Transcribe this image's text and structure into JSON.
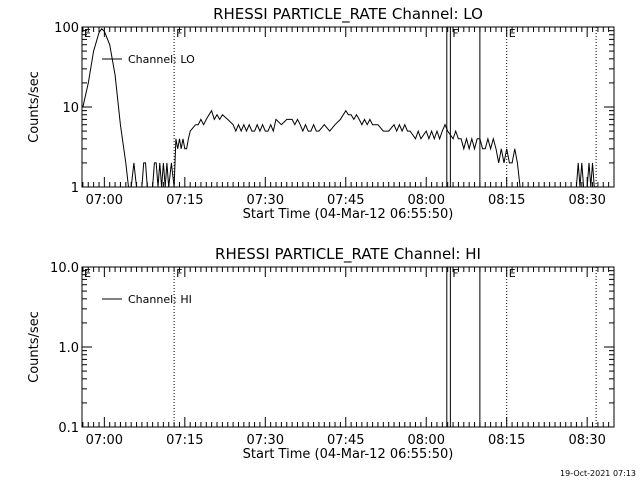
{
  "page": {
    "footer_timestamp": "19-Oct-2021 07:13"
  },
  "chart_data": [
    {
      "type": "line",
      "title": "RHESSI PARTICLE_RATE Channel: LO",
      "xlabel": "Start Time (04-Mar-12 06:55:50)",
      "ylabel": "Counts/sec",
      "yscale": "log",
      "ylim": [
        1,
        100
      ],
      "yticks": [
        "1",
        "10",
        "100"
      ],
      "xlim": [
        "06:55:50",
        "08:35:00"
      ],
      "xticks": [
        "07:00",
        "07:15",
        "07:30",
        "07:45",
        "08:00",
        "08:15",
        "08:30"
      ],
      "legend": {
        "position": "top-left",
        "label": "Channel: LO"
      },
      "markers": [
        {
          "label": "E",
          "time": "06:55:50",
          "style": "dotted"
        },
        {
          "label": "F",
          "time": "07:13:00",
          "style": "dotted"
        },
        {
          "label": "",
          "time": "08:03:50",
          "style": "solid"
        },
        {
          "label": "F",
          "time": "08:04:30",
          "style": "solid"
        },
        {
          "label": "",
          "time": "08:10:00",
          "style": "solid"
        },
        {
          "label": "E",
          "time": "08:15:00",
          "style": "dotted"
        },
        {
          "label": "",
          "time": "08:31:40",
          "style": "dotted"
        }
      ],
      "series": [
        {
          "points": [
            [
              "06:56:00",
              10
            ],
            [
              "06:57:00",
              20
            ],
            [
              "06:58:00",
              50
            ],
            [
              "06:59:00",
              85
            ],
            [
              "06:59:30",
              95
            ],
            [
              "07:00:00",
              88
            ],
            [
              "07:01:00",
              60
            ],
            [
              "07:02:00",
              25
            ],
            [
              "07:03:00",
              6
            ],
            [
              "07:04:00",
              2
            ],
            [
              "07:04:30",
              1
            ],
            [
              "07:05:00",
              1
            ],
            [
              "07:05:30",
              2
            ],
            [
              "07:06:00",
              1
            ],
            [
              "07:07:00",
              1
            ],
            [
              "07:07:20",
              2
            ],
            [
              "07:07:40",
              2
            ],
            [
              "07:08:00",
              1
            ],
            [
              "07:09:00",
              1
            ],
            [
              "07:09:20",
              2
            ],
            [
              "07:09:40",
              2
            ],
            [
              "07:10:00",
              1
            ],
            [
              "07:10:20",
              2
            ],
            [
              "07:10:40",
              1
            ],
            [
              "07:11:00",
              2
            ],
            [
              "07:11:20",
              1
            ],
            [
              "07:11:40",
              2
            ],
            [
              "07:12:00",
              1
            ],
            [
              "07:12:30",
              2
            ],
            [
              "07:13:00",
              1
            ],
            [
              "07:13:20",
              4
            ],
            [
              "07:13:40",
              3
            ],
            [
              "07:14:00",
              4
            ],
            [
              "07:14:20",
              3
            ],
            [
              "07:14:40",
              4
            ],
            [
              "07:15:00",
              3
            ],
            [
              "07:15:20",
              3
            ],
            [
              "07:15:40",
              4
            ],
            [
              "07:16:00",
              5
            ],
            [
              "07:17:00",
              6
            ],
            [
              "07:17:30",
              6
            ],
            [
              "07:18:00",
              7
            ],
            [
              "07:18:30",
              6
            ],
            [
              "07:19:00",
              7
            ],
            [
              "07:19:30",
              8
            ],
            [
              "07:20:00",
              9
            ],
            [
              "07:20:30",
              7
            ],
            [
              "07:21:00",
              8
            ],
            [
              "07:21:30",
              7
            ],
            [
              "07:22:00",
              8
            ],
            [
              "07:23:00",
              7
            ],
            [
              "07:24:00",
              6
            ],
            [
              "07:24:30",
              5
            ],
            [
              "07:25:00",
              6
            ],
            [
              "07:25:30",
              5
            ],
            [
              "07:26:00",
              6
            ],
            [
              "07:26:30",
              5
            ],
            [
              "07:27:00",
              6
            ],
            [
              "07:27:30",
              5
            ],
            [
              "07:28:00",
              5
            ],
            [
              "07:28:30",
              6
            ],
            [
              "07:29:00",
              5
            ],
            [
              "07:29:30",
              6
            ],
            [
              "07:30:00",
              5
            ],
            [
              "07:30:30",
              5
            ],
            [
              "07:31:00",
              6
            ],
            [
              "07:31:30",
              5
            ],
            [
              "07:32:00",
              7
            ],
            [
              "07:33:00",
              6
            ],
            [
              "07:34:00",
              7
            ],
            [
              "07:35:00",
              7
            ],
            [
              "07:35:30",
              6
            ],
            [
              "07:36:00",
              7
            ],
            [
              "07:36:30",
              6
            ],
            [
              "07:37:00",
              5
            ],
            [
              "07:37:30",
              6
            ],
            [
              "07:38:00",
              5
            ],
            [
              "07:38:30",
              5
            ],
            [
              "07:39:00",
              6
            ],
            [
              "07:39:30",
              5
            ],
            [
              "07:40:00",
              5
            ],
            [
              "07:41:00",
              6
            ],
            [
              "07:42:00",
              5
            ],
            [
              "07:43:00",
              6
            ],
            [
              "07:44:00",
              7
            ],
            [
              "07:45:00",
              9
            ],
            [
              "07:45:30",
              8
            ],
            [
              "07:46:00",
              8
            ],
            [
              "07:46:30",
              7
            ],
            [
              "07:47:00",
              8
            ],
            [
              "07:47:30",
              7
            ],
            [
              "07:48:00",
              6
            ],
            [
              "07:48:30",
              7
            ],
            [
              "07:49:00",
              6
            ],
            [
              "07:49:30",
              7
            ],
            [
              "07:50:00",
              6
            ],
            [
              "07:51:00",
              6
            ],
            [
              "07:52:00",
              5
            ],
            [
              "07:53:00",
              5
            ],
            [
              "07:54:00",
              6
            ],
            [
              "07:54:30",
              5
            ],
            [
              "07:55:00",
              6
            ],
            [
              "07:55:30",
              5
            ],
            [
              "07:56:00",
              6
            ],
            [
              "07:56:30",
              5
            ],
            [
              "07:57:00",
              5
            ],
            [
              "07:58:00",
              4
            ],
            [
              "07:58:30",
              5
            ],
            [
              "07:59:00",
              4
            ],
            [
              "08:00:00",
              5
            ],
            [
              "08:00:30",
              4
            ],
            [
              "08:01:00",
              5
            ],
            [
              "08:01:30",
              4
            ],
            [
              "08:02:00",
              5
            ],
            [
              "08:02:30",
              4
            ],
            [
              "08:03:00",
              5
            ],
            [
              "08:03:30",
              6
            ],
            [
              "08:04:00",
              5
            ],
            [
              "08:05:00",
              4
            ],
            [
              "08:05:30",
              5
            ],
            [
              "08:06:00",
              4
            ],
            [
              "08:06:30",
              4
            ],
            [
              "08:07:00",
              3
            ],
            [
              "08:07:30",
              4
            ],
            [
              "08:08:00",
              3
            ],
            [
              "08:08:30",
              4
            ],
            [
              "08:09:00",
              3
            ],
            [
              "08:09:30",
              4
            ],
            [
              "08:10:00",
              4
            ],
            [
              "08:10:30",
              3
            ],
            [
              "08:11:00",
              3
            ],
            [
              "08:11:30",
              4
            ],
            [
              "08:12:00",
              3
            ],
            [
              "08:12:30",
              4
            ],
            [
              "08:13:00",
              3
            ],
            [
              "08:13:30",
              2
            ],
            [
              "08:14:00",
              3
            ],
            [
              "08:14:30",
              2
            ],
            [
              "08:15:00",
              3
            ],
            [
              "08:15:30",
              2
            ],
            [
              "08:16:00",
              2
            ],
            [
              "08:16:30",
              3
            ],
            [
              "08:17:00",
              2
            ],
            [
              "08:17:30",
              1
            ],
            [
              "08:28:00",
              1
            ],
            [
              "08:28:20",
              2
            ],
            [
              "08:28:40",
              1
            ],
            [
              "08:29:00",
              2
            ],
            [
              "08:29:20",
              1
            ],
            [
              "08:30:00",
              1
            ],
            [
              "08:30:20",
              2
            ],
            [
              "08:30:40",
              1
            ],
            [
              "08:31:00",
              2
            ],
            [
              "08:31:20",
              1
            ]
          ]
        }
      ]
    },
    {
      "type": "line",
      "title": "RHESSI PARTICLE_RATE Channel: HI",
      "xlabel": "Start Time (04-Mar-12 06:55:50)",
      "ylabel": "Counts/sec",
      "yscale": "log",
      "ylim": [
        0.1,
        10
      ],
      "yticks": [
        "0.1",
        "1.0",
        "10.0"
      ],
      "xlim": [
        "06:55:50",
        "08:35:00"
      ],
      "xticks": [
        "07:00",
        "07:15",
        "07:30",
        "07:45",
        "08:00",
        "08:15",
        "08:30"
      ],
      "legend": {
        "position": "top-left",
        "label": "Channel: HI"
      },
      "markers": [
        {
          "label": "E",
          "time": "06:55:50",
          "style": "dotted"
        },
        {
          "label": "F",
          "time": "07:13:00",
          "style": "dotted"
        },
        {
          "label": "",
          "time": "08:03:50",
          "style": "solid"
        },
        {
          "label": "F",
          "time": "08:04:30",
          "style": "solid"
        },
        {
          "label": "",
          "time": "08:10:00",
          "style": "solid"
        },
        {
          "label": "E",
          "time": "08:15:00",
          "style": "dotted"
        },
        {
          "label": "",
          "time": "08:31:40",
          "style": "dotted"
        }
      ],
      "series": [
        {
          "points": []
        }
      ]
    }
  ]
}
